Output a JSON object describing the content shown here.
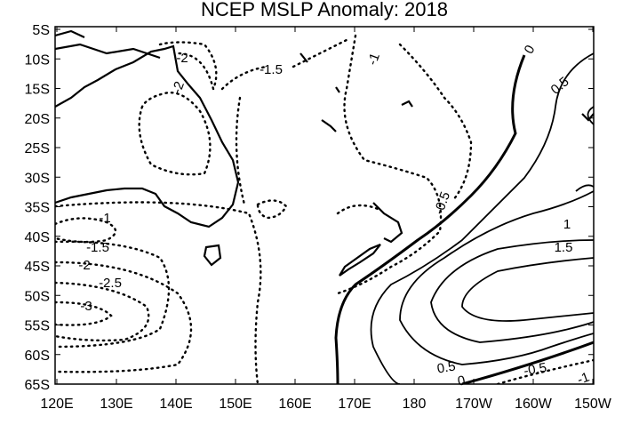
{
  "title": "NCEP MSLP Anomaly: 2018",
  "x_axis": {
    "labels": [
      "120E",
      "130E",
      "140E",
      "150E",
      "160E",
      "170E",
      "180",
      "170W",
      "160W",
      "150W"
    ]
  },
  "y_axis": {
    "labels": [
      "5S",
      "10S",
      "15S",
      "20S",
      "25S",
      "30S",
      "35S",
      "40S",
      "45S",
      "50S",
      "55S",
      "60S",
      "65S"
    ]
  },
  "contour_labels": [
    "-2",
    "-1.5",
    "-1",
    "0",
    "0.5",
    "-2",
    "-0.5",
    "-1",
    "1",
    "1.5",
    "-1.5",
    "-2",
    "-2.5",
    "-3",
    "0.5",
    "0",
    "-0.5",
    "-1"
  ]
}
